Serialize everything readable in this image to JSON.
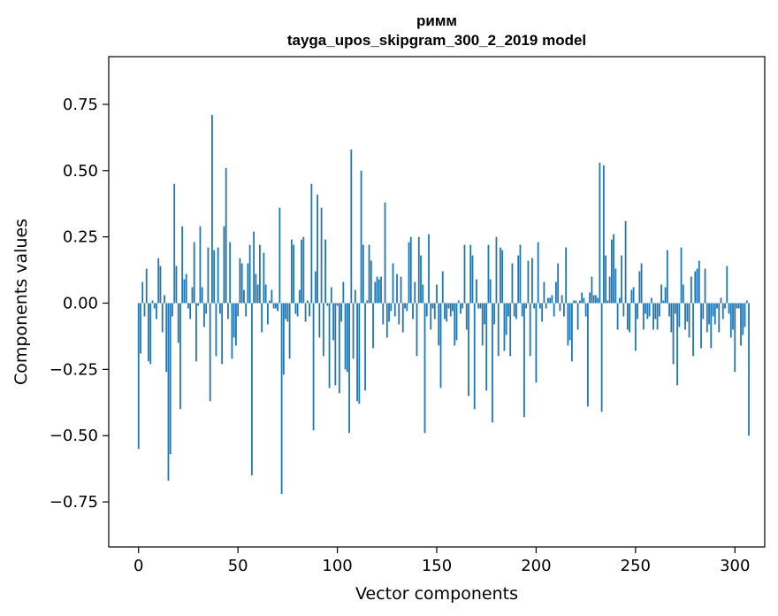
{
  "chart_data": {
    "type": "bar",
    "title": "римм",
    "subtitle": "tayga_upos_skipgram_300_2_2019 model",
    "xlabel": "Vector components",
    "ylabel": "Components values",
    "xlim": [
      -15,
      315
    ],
    "ylim": [
      -0.92,
      0.93
    ],
    "xticks": [
      0,
      50,
      100,
      150,
      200,
      250,
      300
    ],
    "xtick_labels": [
      "0",
      "50",
      "100",
      "150",
      "200",
      "250",
      "300"
    ],
    "yticks": [
      -0.75,
      -0.5,
      -0.25,
      0.0,
      0.25,
      0.5,
      0.75
    ],
    "ytick_labels": [
      "−0.75",
      "−0.50",
      "−0.25",
      "0.00",
      "0.25",
      "0.50",
      "0.75"
    ],
    "grid": false,
    "legend": "none",
    "bar_color": "#1f77b4",
    "values": [
      -0.55,
      -0.19,
      0.08,
      -0.05,
      0.13,
      -0.22,
      -0.23,
      0.01,
      -0.02,
      -0.06,
      0.17,
      0.14,
      -0.11,
      0.03,
      -0.26,
      -0.67,
      -0.57,
      -0.05,
      0.45,
      0.14,
      -0.15,
      -0.4,
      0.29,
      0.09,
      0.11,
      -0.02,
      -0.06,
      0.06,
      0.23,
      -0.22,
      -0.01,
      0.29,
      0.06,
      -0.09,
      -0.04,
      0.21,
      -0.37,
      0.71,
      0.2,
      -0.2,
      0.21,
      -0.04,
      -0.23,
      0.29,
      0.51,
      -0.06,
      0.23,
      -0.21,
      -0.13,
      -0.16,
      -0.05,
      0.17,
      0.15,
      0.05,
      -0.05,
      0.15,
      0.22,
      -0.65,
      0.27,
      0.11,
      0.07,
      0.22,
      -0.11,
      0.19,
      0.07,
      -0.08,
      0.01,
      0.05,
      -0.02,
      -0.02,
      -0.03,
      0.36,
      -0.72,
      -0.27,
      -0.06,
      -0.07,
      -0.21,
      0.24,
      0.22,
      -0.04,
      -0.05,
      0.05,
      0.24,
      0.25,
      -0.07,
      0.01,
      -0.05,
      0.45,
      -0.48,
      0.12,
      0.41,
      -0.13,
      0.36,
      -0.2,
      0.24,
      -0.01,
      -0.32,
      0.06,
      -0.14,
      -0.31,
      -0.01,
      -0.34,
      -0.07,
      0.08,
      -0.25,
      -0.26,
      -0.49,
      0.58,
      -0.21,
      0.05,
      -0.37,
      -0.38,
      0.5,
      0.22,
      -0.33,
      0.01,
      0.22,
      0.16,
      -0.17,
      0.08,
      0.1,
      0.09,
      0.1,
      -0.08,
      0.38,
      -0.13,
      -0.07,
      -0.03,
      0.15,
      -0.05,
      0.11,
      -0.08,
      0.1,
      -0.11,
      -0.02,
      -0.03,
      0.23,
      0.25,
      -0.06,
      0.08,
      -0.2,
      0.25,
      0.18,
      0.07,
      -0.49,
      -0.05,
      0.26,
      -0.1,
      -0.02,
      -0.06,
      0.07,
      -0.16,
      -0.32,
      0.12,
      -0.06,
      -0.07,
      -0.02,
      -0.05,
      -0.03,
      -0.16,
      -0.14,
      0.01,
      -0.04,
      -0.02,
      0.22,
      -0.1,
      -0.35,
      0.22,
      0.18,
      -0.4,
      0.09,
      -0.02,
      -0.02,
      -0.16,
      -0.08,
      -0.33,
      0.22,
      0.09,
      -0.45,
      -0.08,
      0.25,
      -0.2,
      0.21,
      0.2,
      -0.18,
      -0.12,
      -0.05,
      -0.2,
      0.15,
      -0.05,
      -0.06,
      0.18,
      0.22,
      -0.05,
      -0.43,
      -0.02,
      0.16,
      -0.2,
      0.17,
      -0.02,
      -0.3,
      0.23,
      -0.02,
      -0.07,
      0.08,
      -0.02,
      0.02,
      0.02,
      0.03,
      -0.05,
      0.08,
      0.15,
      -0.03,
      0.03,
      -0.05,
      0.21,
      -0.16,
      -0.14,
      -0.22,
      0.01,
      0.01,
      -0.1,
      0.01,
      0.04,
      0.02,
      -0.05,
      -0.39,
      0.04,
      0.1,
      0.03,
      0.03,
      0.02,
      0.53,
      -0.41,
      0.52,
      0.18,
      0.01,
      0.1,
      0.24,
      0.26,
      0.13,
      -0.1,
      0.02,
      0.18,
      -0.05,
      0.31,
      -0.1,
      -0.11,
      0.05,
      0.06,
      -0.18,
      -0.06,
      0.12,
      0.15,
      -0.1,
      -0.04,
      -0.06,
      -0.05,
      0.02,
      -0.1,
      -0.06,
      -0.1,
      -0.05,
      0.07,
      0.01,
      0.06,
      0.2,
      -0.05,
      -0.11,
      -0.23,
      -0.04,
      -0.31,
      -0.09,
      0.21,
      0.07,
      -0.1,
      -0.07,
      -0.13,
      0.1,
      -0.2,
      0.12,
      0.13,
      0.16,
      -0.17,
      -0.06,
      0.13,
      -0.11,
      -0.08,
      -0.17,
      -0.05,
      -0.08,
      -0.02,
      -0.11,
      0.02,
      -0.06,
      -0.02,
      0.14,
      -0.04,
      -0.13,
      -0.1,
      -0.26,
      -0.02,
      -0.02,
      -0.16,
      -0.12,
      -0.09,
      0.01,
      -0.5
    ]
  }
}
